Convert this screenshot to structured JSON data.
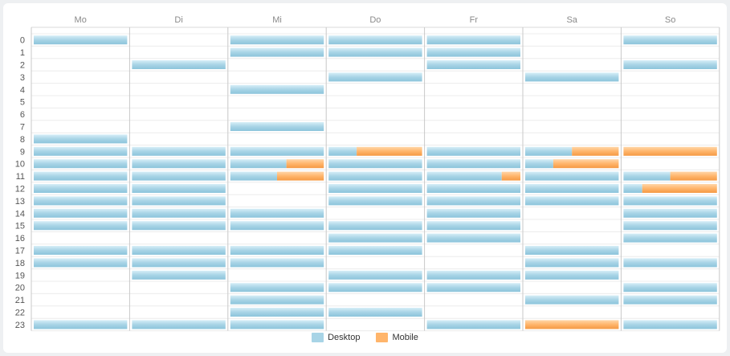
{
  "chart_data": {
    "type": "bar",
    "orientation": "stacked-timeline",
    "days": [
      "Mo",
      "Di",
      "Mi",
      "Do",
      "Fr",
      "Sa",
      "So"
    ],
    "hours": [
      "0",
      "1",
      "2",
      "3",
      "4",
      "5",
      "6",
      "7",
      "8",
      "9",
      "10",
      "11",
      "12",
      "13",
      "14",
      "15",
      "16",
      "17",
      "18",
      "19",
      "20",
      "21",
      "22",
      "23"
    ],
    "series": [
      {
        "name": "Desktop",
        "color": "#a8d4e6"
      },
      {
        "name": "Mobile",
        "color": "#ffb56b"
      }
    ],
    "desktop_share": [
      [
        1,
        null,
        1,
        1,
        1,
        null,
        1
      ],
      [
        null,
        null,
        1,
        1,
        1,
        null,
        null
      ],
      [
        null,
        1,
        null,
        null,
        1,
        null,
        1
      ],
      [
        null,
        null,
        null,
        1,
        null,
        1,
        null
      ],
      [
        null,
        null,
        1,
        null,
        null,
        null,
        null
      ],
      [
        null,
        null,
        null,
        null,
        null,
        null,
        null
      ],
      [
        null,
        null,
        null,
        null,
        null,
        null,
        null
      ],
      [
        null,
        null,
        1,
        null,
        null,
        null,
        null
      ],
      [
        1,
        null,
        null,
        null,
        null,
        null,
        null
      ],
      [
        1,
        1,
        1,
        0.3,
        1,
        0.5,
        0
      ],
      [
        1,
        1,
        0.6,
        1,
        1,
        0.3,
        null
      ],
      [
        1,
        1,
        0.5,
        1,
        0.8,
        1,
        0.5
      ],
      [
        1,
        1,
        null,
        1,
        1,
        1,
        0.2
      ],
      [
        1,
        1,
        null,
        1,
        1,
        1,
        1
      ],
      [
        1,
        1,
        1,
        null,
        1,
        null,
        1
      ],
      [
        1,
        1,
        1,
        1,
        1,
        null,
        1
      ],
      [
        null,
        null,
        null,
        1,
        1,
        null,
        1
      ],
      [
        1,
        1,
        1,
        1,
        null,
        1,
        null
      ],
      [
        1,
        1,
        1,
        null,
        null,
        1,
        1
      ],
      [
        null,
        1,
        null,
        1,
        1,
        1,
        null
      ],
      [
        null,
        null,
        1,
        1,
        1,
        null,
        1
      ],
      [
        null,
        null,
        1,
        null,
        null,
        1,
        1
      ],
      [
        null,
        null,
        1,
        1,
        null,
        null,
        null
      ],
      [
        1,
        1,
        1,
        null,
        1,
        0,
        1
      ]
    ],
    "legend_position": "bottom-center",
    "grid": true
  },
  "legend": {
    "desktop_label": "Desktop",
    "mobile_label": "Mobile"
  }
}
